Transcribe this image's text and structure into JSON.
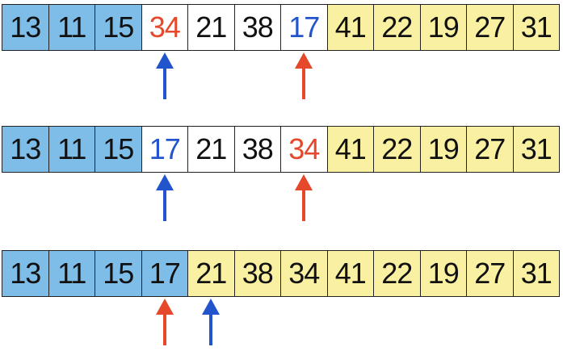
{
  "colors": {
    "sorted_blue": "#7fbde9",
    "unsorted_white": "#ffffff",
    "partition_yellow": "#f9f0a2",
    "red_text_arrow": "#e5482b",
    "blue_text_arrow": "#2255cc",
    "black_text": "#111111"
  },
  "steps": [
    {
      "cells": [
        {
          "value": "13",
          "fill": "blue",
          "text": "black"
        },
        {
          "value": "11",
          "fill": "blue",
          "text": "black"
        },
        {
          "value": "15",
          "fill": "blue",
          "text": "black"
        },
        {
          "value": "34",
          "fill": "white",
          "text": "red"
        },
        {
          "value": "21",
          "fill": "white",
          "text": "black"
        },
        {
          "value": "38",
          "fill": "white",
          "text": "black"
        },
        {
          "value": "17",
          "fill": "white",
          "text": "blue"
        },
        {
          "value": "41",
          "fill": "yellow",
          "text": "black"
        },
        {
          "value": "22",
          "fill": "yellow",
          "text": "black"
        },
        {
          "value": "19",
          "fill": "yellow",
          "text": "black"
        },
        {
          "value": "27",
          "fill": "yellow",
          "text": "black"
        },
        {
          "value": "31",
          "fill": "yellow",
          "text": "black"
        }
      ],
      "arrows": [
        {
          "index": 3,
          "color": "blue",
          "icon": "up-arrow-icon"
        },
        {
          "index": 6,
          "color": "red",
          "icon": "up-arrow-icon"
        }
      ]
    },
    {
      "cells": [
        {
          "value": "13",
          "fill": "blue",
          "text": "black"
        },
        {
          "value": "11",
          "fill": "blue",
          "text": "black"
        },
        {
          "value": "15",
          "fill": "blue",
          "text": "black"
        },
        {
          "value": "17",
          "fill": "white",
          "text": "blue"
        },
        {
          "value": "21",
          "fill": "white",
          "text": "black"
        },
        {
          "value": "38",
          "fill": "white",
          "text": "black"
        },
        {
          "value": "34",
          "fill": "white",
          "text": "red"
        },
        {
          "value": "41",
          "fill": "yellow",
          "text": "black"
        },
        {
          "value": "22",
          "fill": "yellow",
          "text": "black"
        },
        {
          "value": "19",
          "fill": "yellow",
          "text": "black"
        },
        {
          "value": "27",
          "fill": "yellow",
          "text": "black"
        },
        {
          "value": "31",
          "fill": "yellow",
          "text": "black"
        }
      ],
      "arrows": [
        {
          "index": 3,
          "color": "blue",
          "icon": "up-arrow-icon"
        },
        {
          "index": 6,
          "color": "red",
          "icon": "up-arrow-icon"
        }
      ]
    },
    {
      "cells": [
        {
          "value": "13",
          "fill": "blue",
          "text": "black"
        },
        {
          "value": "11",
          "fill": "blue",
          "text": "black"
        },
        {
          "value": "15",
          "fill": "blue",
          "text": "black"
        },
        {
          "value": "17",
          "fill": "blue",
          "text": "black"
        },
        {
          "value": "21",
          "fill": "yellow",
          "text": "black"
        },
        {
          "value": "38",
          "fill": "yellow",
          "text": "black"
        },
        {
          "value": "34",
          "fill": "yellow",
          "text": "black"
        },
        {
          "value": "41",
          "fill": "yellow",
          "text": "black"
        },
        {
          "value": "22",
          "fill": "yellow",
          "text": "black"
        },
        {
          "value": "19",
          "fill": "yellow",
          "text": "black"
        },
        {
          "value": "27",
          "fill": "yellow",
          "text": "black"
        },
        {
          "value": "31",
          "fill": "yellow",
          "text": "black"
        }
      ],
      "arrows": [
        {
          "index": 3,
          "color": "red",
          "icon": "up-arrow-icon"
        },
        {
          "index": 4,
          "color": "blue",
          "icon": "up-arrow-icon"
        }
      ]
    }
  ]
}
